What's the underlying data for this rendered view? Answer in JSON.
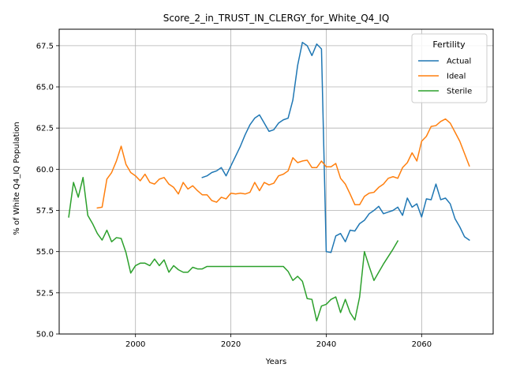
{
  "chart_data": {
    "type": "line",
    "title": "Score_2_in_TRUST_IN_CLERGY_for_White_Q4_IQ",
    "xlabel": "Years",
    "ylabel": "% of White Q4_IQ Population",
    "xlim": [
      1984,
      2075
    ],
    "ylim": [
      50.0,
      68.5
    ],
    "x_ticks": [
      2000,
      2020,
      2040,
      2060
    ],
    "x_tick_labels": [
      "2000",
      "2020",
      "2040",
      "2060"
    ],
    "y_ticks": [
      50.0,
      52.5,
      55.0,
      57.5,
      60.0,
      62.5,
      65.0,
      67.5
    ],
    "y_tick_labels": [
      "50.0",
      "52.5",
      "55.0",
      "57.5",
      "60.0",
      "62.5",
      "65.0",
      "67.5"
    ],
    "grid": true,
    "legend": {
      "title": "Fertility",
      "placement": "top-right"
    },
    "series": [
      {
        "name": "Actual",
        "color": "#1f77b4",
        "x": [
          2014,
          2015,
          2016,
          2017,
          2018,
          2019,
          2020,
          2021,
          2022,
          2023,
          2024,
          2025,
          2026,
          2027,
          2028,
          2029,
          2030,
          2031,
          2032,
          2033,
          2034,
          2035,
          2036,
          2037,
          2038,
          2039,
          2040,
          2041,
          2042,
          2043,
          2044,
          2045,
          2046,
          2047,
          2048,
          2049,
          2050,
          2051,
          2052,
          2053,
          2054,
          2055,
          2056,
          2057,
          2058,
          2059,
          2060,
          2061,
          2062,
          2063,
          2064,
          2065,
          2066,
          2067,
          2068,
          2069,
          2070
        ],
        "values": [
          59.5,
          59.6,
          59.8,
          59.9,
          60.1,
          59.6,
          60.2,
          60.8,
          61.4,
          62.1,
          62.7,
          63.1,
          63.3,
          62.8,
          62.3,
          62.4,
          62.8,
          63.0,
          63.1,
          64.2,
          66.3,
          67.7,
          67.5,
          66.9,
          67.6,
          67.3,
          55.0,
          54.95,
          55.95,
          56.1,
          55.6,
          56.3,
          56.25,
          56.7,
          56.9,
          57.3,
          57.5,
          57.75,
          57.3,
          57.4,
          57.5,
          57.7,
          57.2,
          58.25,
          57.7,
          57.9,
          57.1,
          58.2,
          58.15,
          59.1,
          58.15,
          58.25,
          57.9,
          57.0,
          56.5,
          55.9,
          55.7
        ]
      },
      {
        "name": "Ideal",
        "color": "#ff7f0e",
        "x": [
          1992,
          1993,
          1994,
          1995,
          1996,
          1997,
          1998,
          1999,
          2000,
          2001,
          2002,
          2003,
          2004,
          2005,
          2006,
          2007,
          2008,
          2009,
          2010,
          2011,
          2012,
          2013,
          2014,
          2015,
          2016,
          2017,
          2018,
          2019,
          2020,
          2021,
          2022,
          2023,
          2024,
          2025,
          2026,
          2027,
          2028,
          2029,
          2030,
          2031,
          2032,
          2033,
          2034,
          2035,
          2036,
          2037,
          2038,
          2039,
          2040,
          2041,
          2042,
          2043,
          2044,
          2045,
          2046,
          2047,
          2048,
          2049,
          2050,
          2051,
          2052,
          2053,
          2054,
          2055,
          2056,
          2057,
          2058,
          2059,
          2060,
          2061,
          2062,
          2063,
          2064,
          2065,
          2066,
          2067,
          2068,
          2069,
          2070
        ],
        "values": [
          57.65,
          57.7,
          59.4,
          59.8,
          60.5,
          61.4,
          60.3,
          59.8,
          59.6,
          59.3,
          59.7,
          59.2,
          59.1,
          59.4,
          59.5,
          59.1,
          58.9,
          58.5,
          59.2,
          58.8,
          59.0,
          58.7,
          58.45,
          58.45,
          58.1,
          58.0,
          58.3,
          58.2,
          58.55,
          58.5,
          58.55,
          58.5,
          58.6,
          59.2,
          58.7,
          59.2,
          59.05,
          59.15,
          59.6,
          59.7,
          59.9,
          60.7,
          60.4,
          60.5,
          60.55,
          60.1,
          60.1,
          60.5,
          60.15,
          60.15,
          60.35,
          59.45,
          59.1,
          58.5,
          57.85,
          57.85,
          58.35,
          58.55,
          58.6,
          58.9,
          59.1,
          59.45,
          59.55,
          59.45,
          60.1,
          60.4,
          61.0,
          60.5,
          61.7,
          62.0,
          62.6,
          62.65,
          62.9,
          63.05,
          62.8,
          62.25,
          61.7,
          60.95,
          60.2
        ]
      },
      {
        "name": "Sterile",
        "color": "#2ca02c",
        "x": [
          1986,
          1987,
          1988,
          1989,
          1990,
          1991,
          1992,
          1993,
          1994,
          1995,
          1996,
          1997,
          1998,
          1999,
          2000,
          2001,
          2002,
          2003,
          2004,
          2005,
          2006,
          2007,
          2008,
          2009,
          2010,
          2011,
          2012,
          2013,
          2014,
          2015,
          2016,
          2017,
          2018,
          2019,
          2020,
          2021,
          2022,
          2023,
          2024,
          2025,
          2026,
          2027,
          2028,
          2029,
          2030,
          2031,
          2032,
          2033,
          2034,
          2035,
          2036,
          2037,
          2038,
          2039,
          2040,
          2041,
          2042,
          2043,
          2044,
          2045,
          2046,
          2047,
          2048,
          2049,
          2050,
          2051,
          2052,
          2053,
          2054,
          2055
        ],
        "values": [
          57.1,
          59.2,
          58.3,
          59.5,
          57.2,
          56.7,
          56.1,
          55.7,
          56.3,
          55.6,
          55.85,
          55.8,
          54.95,
          53.7,
          54.15,
          54.3,
          54.3,
          54.15,
          54.55,
          54.15,
          54.5,
          53.75,
          54.15,
          53.9,
          53.75,
          53.75,
          54.05,
          53.95,
          53.95,
          54.1,
          54.1,
          54.1,
          54.1,
          54.1,
          54.1,
          54.1,
          54.1,
          54.1,
          54.1,
          54.1,
          54.1,
          54.1,
          54.1,
          54.1,
          54.1,
          54.1,
          53.8,
          53.25,
          53.5,
          53.2,
          52.15,
          52.1,
          50.8,
          51.7,
          51.8,
          52.1,
          52.25,
          51.3,
          52.1,
          51.3,
          50.85,
          52.25,
          55.0,
          54.1,
          53.25,
          53.75,
          54.25,
          54.7,
          55.15,
          55.65
        ]
      }
    ]
  }
}
